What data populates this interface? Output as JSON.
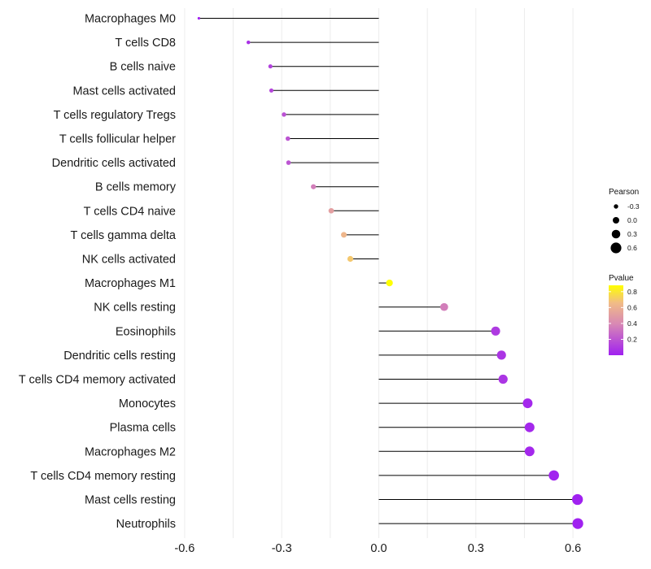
{
  "chart_data": {
    "type": "lollipop",
    "title": "",
    "xlabel": "",
    "ylabel": "",
    "xlim": [
      -0.6,
      0.6
    ],
    "xticks": [
      -0.6,
      -0.3,
      0.0,
      0.3,
      0.6
    ],
    "xtick_labels": [
      "-0.6",
      "-0.3",
      "0.0",
      "0.3",
      "0.6"
    ],
    "grid": true,
    "baseline": 0.0,
    "categories": [
      "Macrophages M0",
      "T cells CD8",
      "B cells naive",
      "Mast cells activated",
      "T cells regulatory  Tregs ",
      "T cells follicular helper",
      "Dendritic cells activated",
      "B cells memory",
      "T cells CD4 naive",
      "T cells gamma delta",
      "NK cells activated",
      "Macrophages M1",
      "NK cells resting",
      "Eosinophils",
      "Dendritic cells resting",
      "T cells CD4 memory activated",
      "Monocytes",
      "Plasma cells",
      "Macrophages M2",
      "T cells CD4 memory resting",
      "Mast cells resting",
      "Neutrophils"
    ],
    "pearson": [
      -0.556,
      -0.403,
      -0.335,
      -0.332,
      -0.293,
      -0.281,
      -0.279,
      -0.202,
      -0.147,
      -0.108,
      -0.088,
      0.033,
      0.202,
      0.361,
      0.379,
      0.384,
      0.46,
      0.466,
      0.466,
      0.541,
      0.614,
      0.615
    ],
    "pvalue": [
      0.01,
      0.07,
      0.13,
      0.14,
      0.19,
      0.2,
      0.2,
      0.36,
      0.51,
      0.63,
      0.7,
      0.88,
      0.36,
      0.1,
      0.08,
      0.08,
      0.03,
      0.03,
      0.03,
      0.01,
      0.002,
      0.002
    ],
    "legend_size": {
      "title": "Pearson",
      "labels": [
        "-0.3",
        "0.0",
        "0.3",
        "0.6"
      ],
      "values": [
        -0.3,
        0.0,
        0.3,
        0.6
      ]
    },
    "legend_color": {
      "title": "Pvalue",
      "labels": [
        "0.8",
        "0.6",
        "0.4",
        "0.2"
      ],
      "values": [
        0.8,
        0.6,
        0.4,
        0.2
      ],
      "range": [
        0.0,
        0.88
      ],
      "color_low": "#a020f0",
      "color_high": "#ffff00"
    },
    "legend_position": "right"
  }
}
